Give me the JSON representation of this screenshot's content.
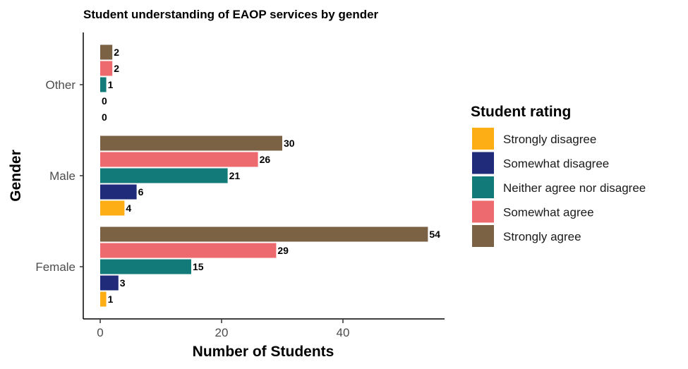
{
  "chart_data": {
    "type": "bar",
    "orientation": "horizontal",
    "title": "Student understanding of EAOP services by gender",
    "xlabel": "Number of Students",
    "ylabel": "Gender",
    "categories": [
      "Female",
      "Male",
      "Other"
    ],
    "xlim": [
      0,
      56.7
    ],
    "xticks": [
      0,
      20,
      40
    ],
    "grid": false,
    "legend_position": "right",
    "legend_title": "Student rating",
    "series": [
      {
        "name": "Strongly disagree",
        "color": "#FEAE15",
        "values": [
          1,
          4,
          0
        ]
      },
      {
        "name": "Somewhat disagree",
        "color": "#202C7A",
        "values": [
          3,
          6,
          0
        ]
      },
      {
        "name": "Neither agree nor disagree",
        "color": "#127B79",
        "values": [
          15,
          21,
          1
        ]
      },
      {
        "name": "Somewhat agree",
        "color": "#ED6B6F",
        "values": [
          29,
          26,
          2
        ]
      },
      {
        "name": "Strongly agree",
        "color": "#7B6244",
        "values": [
          54,
          30,
          2
        ]
      }
    ]
  }
}
